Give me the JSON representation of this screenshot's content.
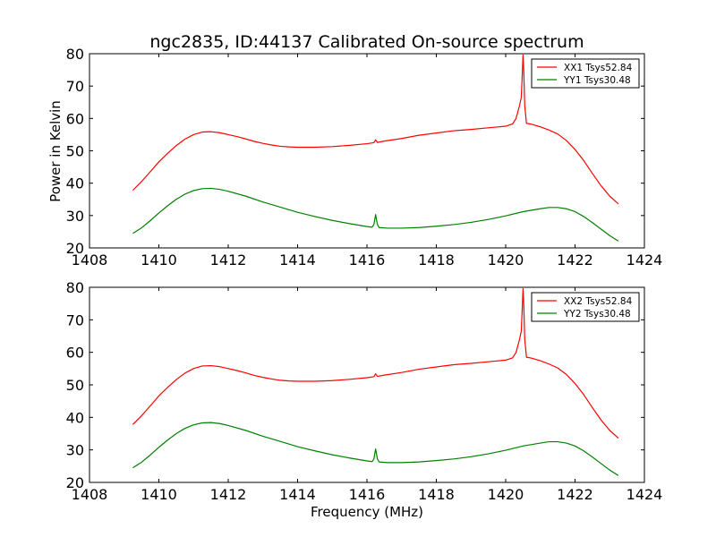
{
  "figure": {
    "title": "ngc2835, ID:44137 Calibrated On-source spectrum",
    "xlabel": "Frequency (MHz)",
    "ylabel": "Power in Kelvin"
  },
  "chart_data": [
    {
      "type": "line",
      "title": "ngc2835, ID:44137 Calibrated On-source spectrum",
      "xlabel": "",
      "ylabel": "Power in Kelvin",
      "xlim": [
        1408,
        1424
      ],
      "ylim": [
        20,
        80
      ],
      "xticks": [
        1408,
        1410,
        1412,
        1414,
        1416,
        1418,
        1420,
        1422,
        1424
      ],
      "yticks": [
        20,
        30,
        40,
        50,
        60,
        70,
        80
      ],
      "grid": false,
      "legend_position": "top-right",
      "series": [
        {
          "name": "XX1 Tsys52.84",
          "color": "#ff0000",
          "points": [
            [
              1409.25,
              37.8
            ],
            [
              1409.5,
              40.5
            ],
            [
              1409.75,
              43.5
            ],
            [
              1410.0,
              46.6
            ],
            [
              1410.25,
              49.2
            ],
            [
              1410.5,
              51.6
            ],
            [
              1410.75,
              53.6
            ],
            [
              1411.0,
              55.0
            ],
            [
              1411.25,
              55.8
            ],
            [
              1411.5,
              55.9
            ],
            [
              1411.75,
              55.6
            ],
            [
              1412.0,
              55.0
            ],
            [
              1412.25,
              54.4
            ],
            [
              1412.5,
              53.7
            ],
            [
              1412.75,
              52.9
            ],
            [
              1413.0,
              52.3
            ],
            [
              1413.25,
              51.8
            ],
            [
              1413.5,
              51.4
            ],
            [
              1413.75,
              51.2
            ],
            [
              1414.0,
              51.1
            ],
            [
              1414.5,
              51.1
            ],
            [
              1415.0,
              51.3
            ],
            [
              1415.5,
              51.7
            ],
            [
              1416.0,
              52.2
            ],
            [
              1416.2,
              52.5
            ],
            [
              1416.25,
              53.4
            ],
            [
              1416.3,
              52.6
            ],
            [
              1416.5,
              53.0
            ],
            [
              1417.0,
              53.8
            ],
            [
              1417.5,
              54.8
            ],
            [
              1418.0,
              55.5
            ],
            [
              1418.5,
              56.2
            ],
            [
              1419.0,
              56.6
            ],
            [
              1419.5,
              57.1
            ],
            [
              1420.0,
              57.6
            ],
            [
              1420.2,
              58.3
            ],
            [
              1420.3,
              60.0
            ],
            [
              1420.4,
              64.0
            ],
            [
              1420.45,
              66.5
            ],
            [
              1420.48,
              74.0
            ],
            [
              1420.5,
              79.6
            ],
            [
              1420.52,
              75.0
            ],
            [
              1420.55,
              64.0
            ],
            [
              1420.6,
              58.5
            ],
            [
              1420.75,
              58.2
            ],
            [
              1421.0,
              57.4
            ],
            [
              1421.25,
              56.4
            ],
            [
              1421.5,
              55.2
            ],
            [
              1421.75,
              53.2
            ],
            [
              1422.0,
              50.4
            ],
            [
              1422.25,
              47.0
            ],
            [
              1422.5,
              43.0
            ],
            [
              1422.75,
              39.2
            ],
            [
              1423.0,
              36.0
            ],
            [
              1423.25,
              33.6
            ]
          ]
        },
        {
          "name": "YY1 Tsys30.48",
          "color": "#008000",
          "points": [
            [
              1409.25,
              24.5
            ],
            [
              1409.5,
              26.2
            ],
            [
              1409.75,
              28.4
            ],
            [
              1410.0,
              30.8
            ],
            [
              1410.25,
              33.0
            ],
            [
              1410.5,
              35.0
            ],
            [
              1410.75,
              36.6
            ],
            [
              1411.0,
              37.7
            ],
            [
              1411.25,
              38.3
            ],
            [
              1411.5,
              38.4
            ],
            [
              1411.75,
              38.1
            ],
            [
              1412.0,
              37.5
            ],
            [
              1412.5,
              36.0
            ],
            [
              1413.0,
              34.2
            ],
            [
              1413.5,
              32.6
            ],
            [
              1414.0,
              31.0
            ],
            [
              1414.5,
              29.7
            ],
            [
              1415.0,
              28.5
            ],
            [
              1415.5,
              27.5
            ],
            [
              1416.0,
              26.6
            ],
            [
              1416.15,
              26.4
            ],
            [
              1416.2,
              27.2
            ],
            [
              1416.25,
              30.3
            ],
            [
              1416.3,
              27.3
            ],
            [
              1416.35,
              26.3
            ],
            [
              1416.6,
              26.1
            ],
            [
              1417.0,
              26.1
            ],
            [
              1417.5,
              26.3
            ],
            [
              1418.0,
              26.7
            ],
            [
              1418.5,
              27.2
            ],
            [
              1419.0,
              27.9
            ],
            [
              1419.5,
              28.8
            ],
            [
              1420.0,
              29.9
            ],
            [
              1420.5,
              31.2
            ],
            [
              1421.0,
              32.1
            ],
            [
              1421.25,
              32.5
            ],
            [
              1421.5,
              32.5
            ],
            [
              1421.75,
              32.1
            ],
            [
              1422.0,
              31.2
            ],
            [
              1422.25,
              29.7
            ],
            [
              1422.5,
              27.8
            ],
            [
              1422.75,
              25.8
            ],
            [
              1423.0,
              23.8
            ],
            [
              1423.25,
              22.1
            ]
          ]
        }
      ]
    },
    {
      "type": "line",
      "title": "",
      "xlabel": "Frequency (MHz)",
      "ylabel": "",
      "xlim": [
        1408,
        1424
      ],
      "ylim": [
        20,
        80
      ],
      "xticks": [
        1408,
        1410,
        1412,
        1414,
        1416,
        1418,
        1420,
        1422,
        1424
      ],
      "yticks": [
        20,
        30,
        40,
        50,
        60,
        70,
        80
      ],
      "grid": false,
      "legend_position": "top-right",
      "series": [
        {
          "name": "XX2 Tsys52.84",
          "color": "#ff0000",
          "points": [
            [
              1409.25,
              37.8
            ],
            [
              1409.5,
              40.5
            ],
            [
              1409.75,
              43.5
            ],
            [
              1410.0,
              46.6
            ],
            [
              1410.25,
              49.2
            ],
            [
              1410.5,
              51.6
            ],
            [
              1410.75,
              53.6
            ],
            [
              1411.0,
              55.0
            ],
            [
              1411.25,
              55.8
            ],
            [
              1411.5,
              55.9
            ],
            [
              1411.75,
              55.6
            ],
            [
              1412.0,
              55.0
            ],
            [
              1412.25,
              54.4
            ],
            [
              1412.5,
              53.7
            ],
            [
              1412.75,
              52.9
            ],
            [
              1413.0,
              52.3
            ],
            [
              1413.25,
              51.8
            ],
            [
              1413.5,
              51.4
            ],
            [
              1413.75,
              51.2
            ],
            [
              1414.0,
              51.1
            ],
            [
              1414.5,
              51.1
            ],
            [
              1415.0,
              51.3
            ],
            [
              1415.5,
              51.7
            ],
            [
              1416.0,
              52.2
            ],
            [
              1416.2,
              52.5
            ],
            [
              1416.25,
              53.4
            ],
            [
              1416.3,
              52.6
            ],
            [
              1416.5,
              53.0
            ],
            [
              1417.0,
              53.8
            ],
            [
              1417.5,
              54.8
            ],
            [
              1418.0,
              55.5
            ],
            [
              1418.5,
              56.2
            ],
            [
              1419.0,
              56.6
            ],
            [
              1419.5,
              57.1
            ],
            [
              1420.0,
              57.6
            ],
            [
              1420.2,
              58.3
            ],
            [
              1420.3,
              60.0
            ],
            [
              1420.4,
              64.0
            ],
            [
              1420.45,
              66.5
            ],
            [
              1420.48,
              74.0
            ],
            [
              1420.5,
              79.6
            ],
            [
              1420.52,
              75.0
            ],
            [
              1420.55,
              64.0
            ],
            [
              1420.6,
              58.5
            ],
            [
              1420.75,
              58.2
            ],
            [
              1421.0,
              57.4
            ],
            [
              1421.25,
              56.4
            ],
            [
              1421.5,
              55.2
            ],
            [
              1421.75,
              53.2
            ],
            [
              1422.0,
              50.4
            ],
            [
              1422.25,
              47.0
            ],
            [
              1422.5,
              43.0
            ],
            [
              1422.75,
              39.2
            ],
            [
              1423.0,
              36.0
            ],
            [
              1423.25,
              33.6
            ]
          ]
        },
        {
          "name": "YY2 Tsys30.48",
          "color": "#008000",
          "points": [
            [
              1409.25,
              24.5
            ],
            [
              1409.5,
              26.2
            ],
            [
              1409.75,
              28.4
            ],
            [
              1410.0,
              30.8
            ],
            [
              1410.25,
              33.0
            ],
            [
              1410.5,
              35.0
            ],
            [
              1410.75,
              36.6
            ],
            [
              1411.0,
              37.7
            ],
            [
              1411.25,
              38.3
            ],
            [
              1411.5,
              38.4
            ],
            [
              1411.75,
              38.1
            ],
            [
              1412.0,
              37.5
            ],
            [
              1412.5,
              36.0
            ],
            [
              1413.0,
              34.2
            ],
            [
              1413.5,
              32.6
            ],
            [
              1414.0,
              31.0
            ],
            [
              1414.5,
              29.7
            ],
            [
              1415.0,
              28.5
            ],
            [
              1415.5,
              27.5
            ],
            [
              1416.0,
              26.6
            ],
            [
              1416.15,
              26.4
            ],
            [
              1416.2,
              27.2
            ],
            [
              1416.25,
              30.3
            ],
            [
              1416.3,
              27.3
            ],
            [
              1416.35,
              26.3
            ],
            [
              1416.6,
              26.1
            ],
            [
              1417.0,
              26.1
            ],
            [
              1417.5,
              26.3
            ],
            [
              1418.0,
              26.7
            ],
            [
              1418.5,
              27.2
            ],
            [
              1419.0,
              27.9
            ],
            [
              1419.5,
              28.8
            ],
            [
              1420.0,
              29.9
            ],
            [
              1420.5,
              31.2
            ],
            [
              1421.0,
              32.1
            ],
            [
              1421.25,
              32.5
            ],
            [
              1421.5,
              32.5
            ],
            [
              1421.75,
              32.1
            ],
            [
              1422.0,
              31.2
            ],
            [
              1422.25,
              29.7
            ],
            [
              1422.5,
              27.8
            ],
            [
              1422.75,
              25.8
            ],
            [
              1423.0,
              23.8
            ],
            [
              1423.25,
              22.1
            ]
          ]
        }
      ]
    }
  ]
}
